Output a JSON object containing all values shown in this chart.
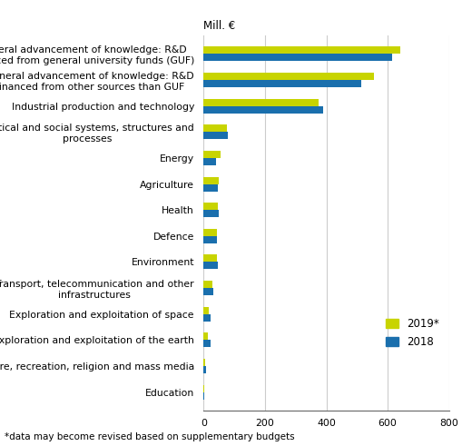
{
  "categories": [
    "Education",
    "Culture, recreation, religion and mass media",
    "Exploration and exploitation of the earth",
    "Exploration and exploitation of space",
    "Transport, telecommunication and other\ninfrastructures",
    "Environment",
    "Defence",
    "Health",
    "Agriculture",
    "Energy",
    "Political and social systems, structures and\nprocesses",
    "Industrial production and technology",
    "General advancement of knowledge: R&D\nfinanced from other sources than GUF",
    "General advancement of knowledge: R&D\nfinanced from general university funds (GUF)"
  ],
  "values_2019": [
    2,
    5,
    15,
    18,
    28,
    42,
    42,
    46,
    48,
    55,
    75,
    375,
    555,
    640
  ],
  "values_2018": [
    2,
    8,
    22,
    22,
    30,
    45,
    42,
    48,
    46,
    40,
    80,
    390,
    515,
    615
  ],
  "color_2019": "#c8d400",
  "color_2018": "#1a6fad",
  "mill_label": "Mill. €",
  "xlim": [
    0,
    800
  ],
  "xticks": [
    0,
    200,
    400,
    600,
    800
  ],
  "footnote": "*data may become revised based on supplementary budgets",
  "legend_2019": "2019*",
  "legend_2018": "2018",
  "bar_height": 0.28,
  "label_fontsize": 7.8,
  "legend_fontsize": 8.5,
  "footnote_fontsize": 7.5,
  "mill_fontsize": 8.5
}
